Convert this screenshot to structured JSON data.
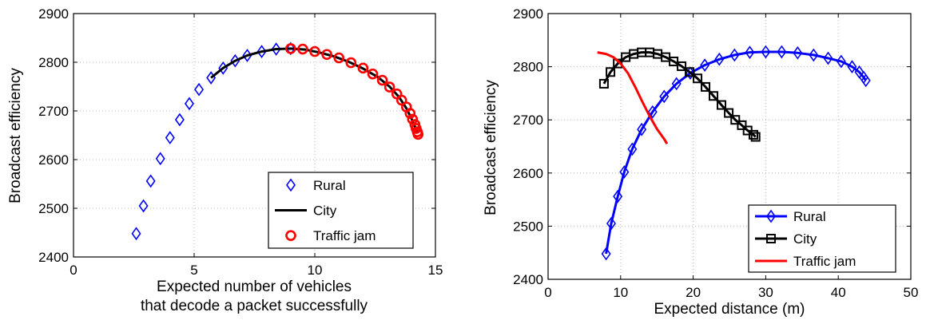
{
  "chart_data": [
    {
      "type": "scatter",
      "xlabel": "Expected number of vehicles",
      "xlabel_line2": "that decode a packet successfully",
      "ylabel": "Broadcast efficiency",
      "xlim": [
        0,
        15
      ],
      "ylim": [
        2400,
        2900
      ],
      "xticks": [
        "0",
        "5",
        "10",
        "15"
      ],
      "yticks": [
        "2400",
        "2500",
        "2600",
        "2700",
        "2800",
        "2900"
      ],
      "grid": true,
      "legend_placement": "bottom-right",
      "series": [
        {
          "name": "Rural",
          "color": "#0000ff",
          "marker": "diamond",
          "line": false,
          "points": [
            [
              2.6,
              2448
            ],
            [
              2.9,
              2505
            ],
            [
              3.2,
              2556
            ],
            [
              3.6,
              2602
            ],
            [
              4.0,
              2645
            ],
            [
              4.4,
              2682
            ],
            [
              4.8,
              2715
            ],
            [
              5.2,
              2744
            ],
            [
              5.7,
              2768
            ],
            [
              6.2,
              2788
            ],
            [
              6.7,
              2803
            ],
            [
              7.2,
              2814
            ],
            [
              7.8,
              2822
            ],
            [
              8.4,
              2827
            ],
            [
              9.0,
              2828
            ]
          ]
        },
        {
          "name": "City",
          "color": "#000000",
          "marker": "none",
          "line": true,
          "points": [
            [
              5.7,
              2768
            ],
            [
              6.2,
              2788
            ],
            [
              6.7,
              2803
            ],
            [
              7.2,
              2814
            ],
            [
              7.8,
              2822
            ],
            [
              8.4,
              2827
            ],
            [
              9.0,
              2828
            ],
            [
              9.6,
              2826
            ],
            [
              10.2,
              2820
            ],
            [
              10.8,
              2812
            ],
            [
              11.4,
              2801
            ],
            [
              12.0,
              2787
            ],
            [
              12.6,
              2770
            ],
            [
              13.1,
              2750
            ],
            [
              13.5,
              2728
            ],
            [
              13.8,
              2705
            ],
            [
              14.0,
              2685
            ],
            [
              14.15,
              2668
            ],
            [
              14.25,
              2655
            ]
          ]
        },
        {
          "name": "Traffic jam",
          "color": "#ff0000",
          "marker": "circle",
          "line": false,
          "points": [
            [
              9.0,
              2828
            ],
            [
              9.5,
              2827
            ],
            [
              10.0,
              2822
            ],
            [
              10.5,
              2816
            ],
            [
              11.0,
              2809
            ],
            [
              11.5,
              2799
            ],
            [
              12.0,
              2788
            ],
            [
              12.4,
              2776
            ],
            [
              12.8,
              2763
            ],
            [
              13.1,
              2749
            ],
            [
              13.4,
              2735
            ],
            [
              13.6,
              2722
            ],
            [
              13.8,
              2708
            ],
            [
              13.95,
              2695
            ],
            [
              14.05,
              2683
            ],
            [
              14.15,
              2672
            ],
            [
              14.2,
              2664
            ],
            [
              14.25,
              2657
            ],
            [
              14.28,
              2652
            ]
          ]
        }
      ]
    },
    {
      "type": "line",
      "xlabel": "Expected distance (m)",
      "ylabel": "Broadcast efficiency",
      "xlim": [
        0,
        50
      ],
      "ylim": [
        2400,
        2900
      ],
      "xticks": [
        "0",
        "10",
        "20",
        "30",
        "40",
        "50"
      ],
      "yticks": [
        "2400",
        "2500",
        "2600",
        "2700",
        "2800",
        "2900"
      ],
      "grid": true,
      "legend_placement": "bottom-right",
      "series": [
        {
          "name": "Rural",
          "color": "#0000ff",
          "marker": "diamond",
          "line": true,
          "points": [
            [
              8.0,
              2448
            ],
            [
              8.7,
              2505
            ],
            [
              9.6,
              2556
            ],
            [
              10.5,
              2602
            ],
            [
              11.6,
              2645
            ],
            [
              12.9,
              2682
            ],
            [
              14.4,
              2715
            ],
            [
              16.0,
              2744
            ],
            [
              17.7,
              2768
            ],
            [
              19.6,
              2788
            ],
            [
              21.6,
              2803
            ],
            [
              23.6,
              2814
            ],
            [
              25.7,
              2822
            ],
            [
              27.8,
              2827
            ],
            [
              30.0,
              2828
            ],
            [
              32.2,
              2828
            ],
            [
              34.4,
              2826
            ],
            [
              36.6,
              2822
            ],
            [
              38.6,
              2816
            ],
            [
              40.4,
              2810
            ],
            [
              41.9,
              2800
            ],
            [
              42.9,
              2790
            ],
            [
              43.5,
              2780
            ],
            [
              43.8,
              2774
            ]
          ]
        },
        {
          "name": "City",
          "color": "#000000",
          "marker": "square",
          "line": true,
          "points": [
            [
              7.7,
              2768
            ],
            [
              8.6,
              2790
            ],
            [
              9.6,
              2806
            ],
            [
              10.7,
              2818
            ],
            [
              11.8,
              2824
            ],
            [
              12.9,
              2827
            ],
            [
              14.0,
              2827
            ],
            [
              15.1,
              2824
            ],
            [
              16.2,
              2818
            ],
            [
              17.3,
              2810
            ],
            [
              18.4,
              2801
            ],
            [
              19.5,
              2790
            ],
            [
              20.6,
              2778
            ],
            [
              21.7,
              2762
            ],
            [
              22.8,
              2745
            ],
            [
              23.9,
              2728
            ],
            [
              24.9,
              2713
            ],
            [
              25.8,
              2700
            ],
            [
              26.7,
              2690
            ],
            [
              27.5,
              2680
            ],
            [
              28.3,
              2672
            ],
            [
              28.6,
              2668
            ]
          ]
        },
        {
          "name": "Traffic jam",
          "color": "#ff0000",
          "marker": "none",
          "line": true,
          "points": [
            [
              6.8,
              2827
            ],
            [
              8.0,
              2824
            ],
            [
              9.0,
              2818
            ],
            [
              10.0,
              2806
            ],
            [
              11.0,
              2788
            ],
            [
              12.0,
              2762
            ],
            [
              13.0,
              2734
            ],
            [
              14.0,
              2707
            ],
            [
              15.0,
              2683
            ],
            [
              16.0,
              2664
            ],
            [
              16.4,
              2655
            ]
          ]
        }
      ]
    }
  ]
}
